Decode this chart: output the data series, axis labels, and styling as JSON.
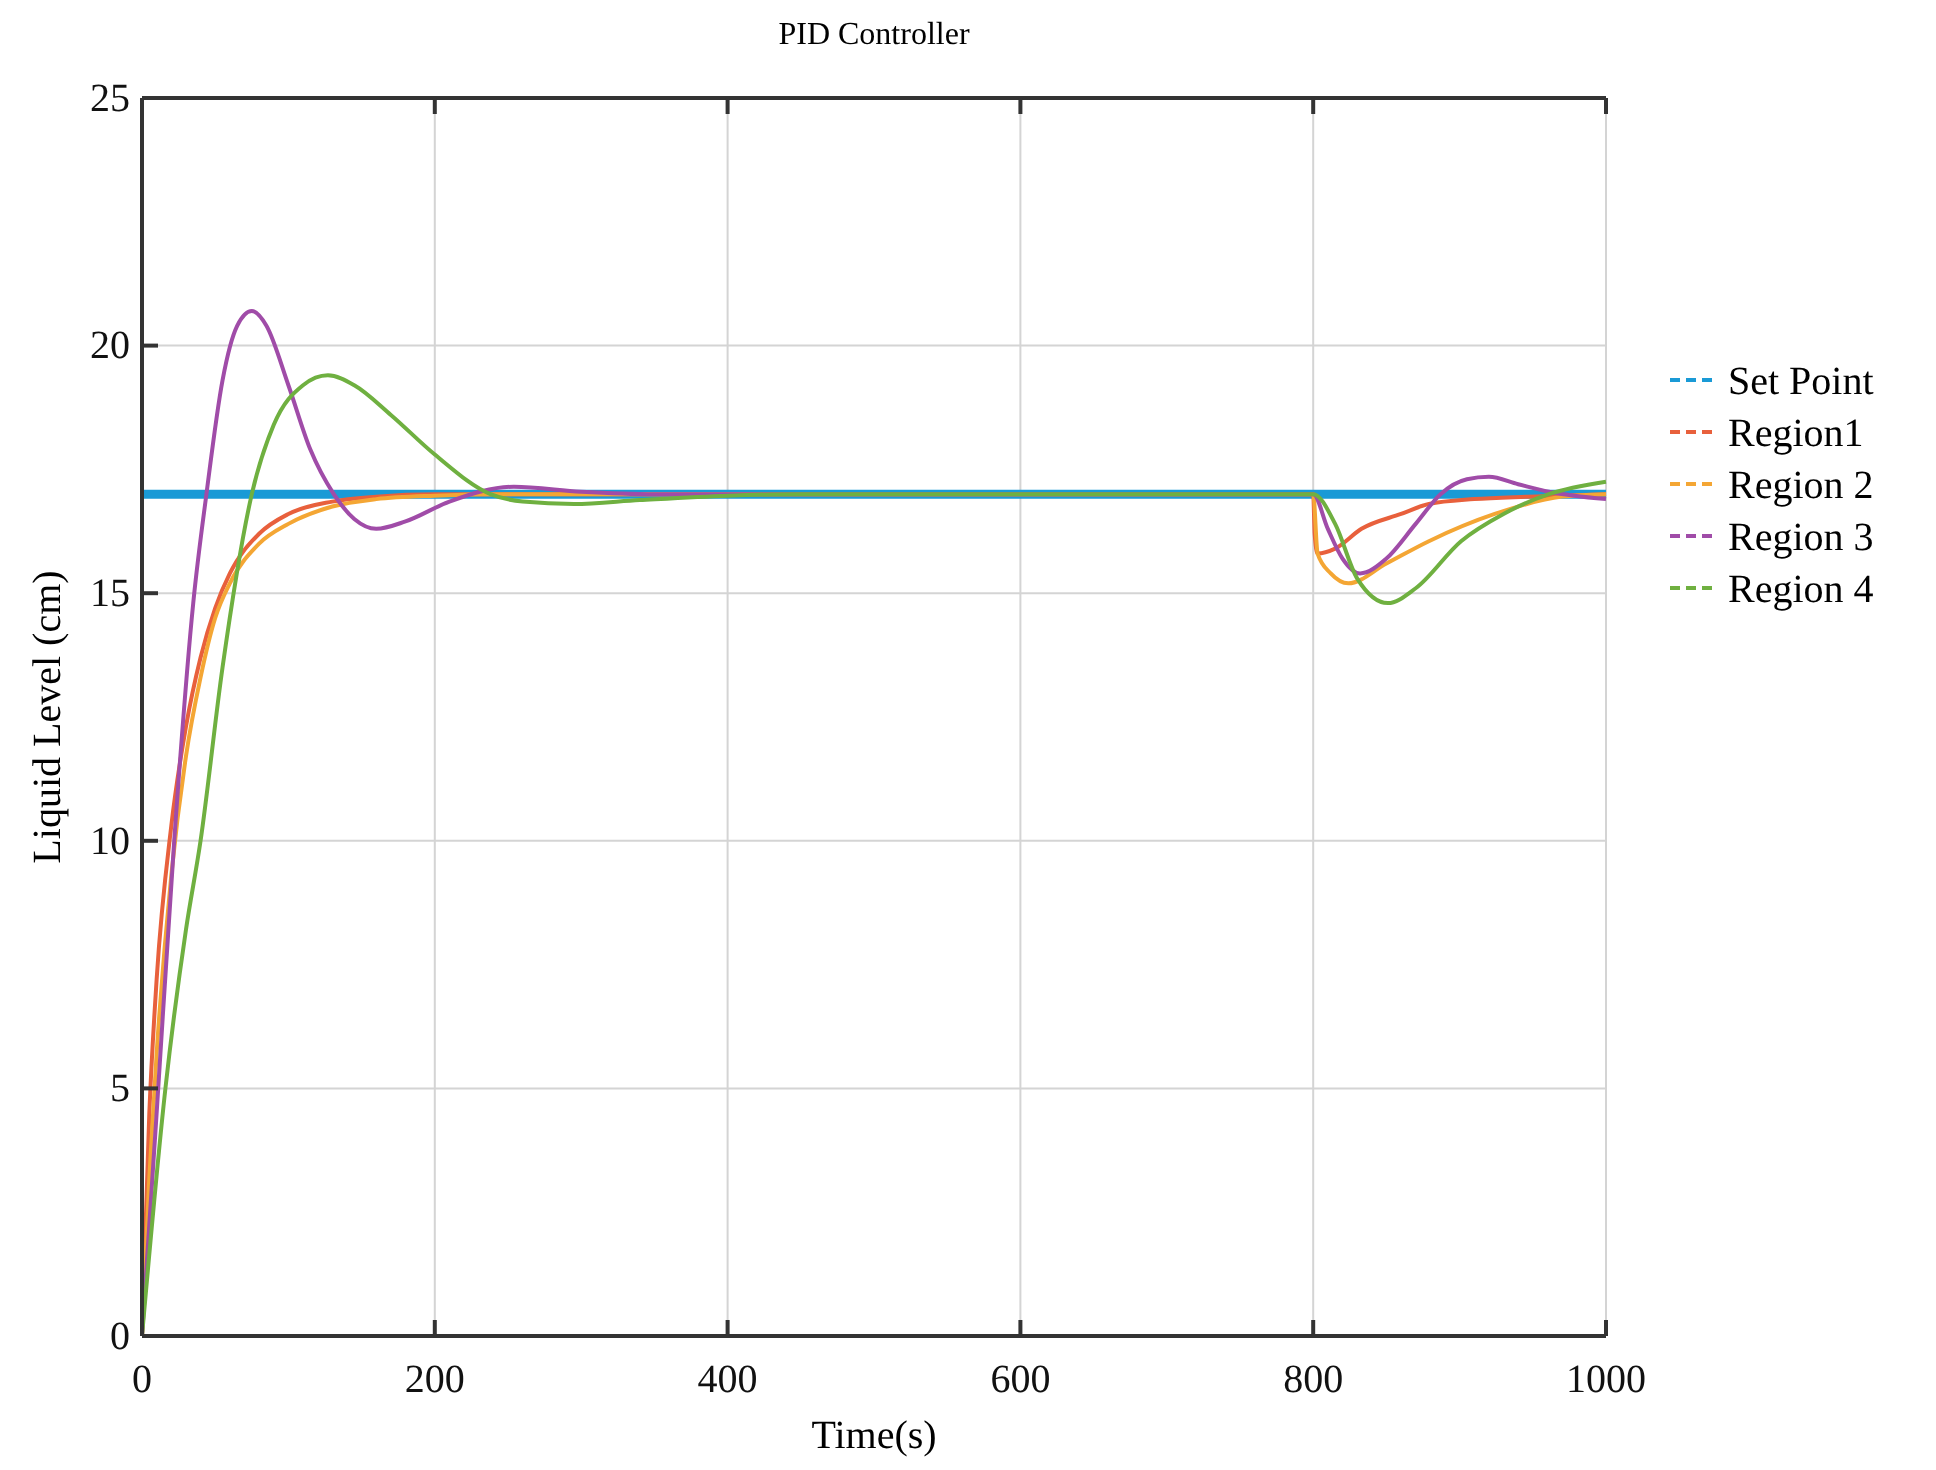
{
  "chart_data": {
    "type": "line",
    "title": "PID Controller",
    "xlabel": "Time(s)",
    "ylabel": "Liquid Level (cm)",
    "xlim": [
      0,
      1000
    ],
    "xticks": [
      0,
      200,
      400,
      600,
      800,
      1000
    ],
    "ylim": [
      0,
      25
    ],
    "yticks": [
      0,
      5,
      10,
      15,
      20,
      25
    ],
    "grid": true,
    "legend": "right",
    "line_style": "solid",
    "marker": "none",
    "series": [
      {
        "name": "Set Point",
        "color": "#1a9ad6",
        "x": [
          0,
          1000
        ],
        "values": [
          17,
          17
        ]
      },
      {
        "name": "Region1",
        "color": "#e8603c",
        "x": [
          0,
          5,
          10,
          20,
          30,
          40,
          50,
          60,
          80,
          100,
          130,
          160,
          200,
          250,
          300,
          800,
          801,
          803,
          815,
          833,
          860,
          879,
          910,
          947,
          1000
        ],
        "values": [
          0,
          4.5,
          7.2,
          10.3,
          12.3,
          13.7,
          14.7,
          15.4,
          16.2,
          16.6,
          16.85,
          16.95,
          17,
          17,
          17,
          17,
          16.2,
          15.8,
          15.9,
          16.3,
          16.6,
          16.8,
          16.9,
          16.95,
          17
        ]
      },
      {
        "name": "Region 2",
        "color": "#f4a634",
        "x": [
          0,
          5,
          10,
          20,
          30,
          40,
          50,
          60,
          80,
          100,
          130,
          160,
          200,
          250,
          300,
          800,
          803,
          812,
          824,
          850,
          879,
          924,
          970,
          1000
        ],
        "values": [
          0,
          3.2,
          5.7,
          9.3,
          11.7,
          13.3,
          14.5,
          15.2,
          16.0,
          16.4,
          16.75,
          16.9,
          16.97,
          17,
          17,
          17,
          15.8,
          15.4,
          15.2,
          15.6,
          16.05,
          16.6,
          16.95,
          17
        ]
      },
      {
        "name": "Region 3",
        "color": "#a04ca8",
        "x": [
          0,
          10,
          22,
          35,
          44,
          55,
          65,
          75,
          85,
          100,
          115,
          131,
          145,
          160,
          180,
          210,
          254,
          300,
          350,
          400,
          800,
          810,
          820,
          832,
          850,
          870,
          887,
          905,
          920,
          940,
          961,
          1000
        ],
        "values": [
          0,
          4.5,
          10,
          14.8,
          17,
          19.3,
          20.4,
          20.7,
          20.4,
          19.2,
          17.9,
          17,
          16.5,
          16.3,
          16.45,
          16.85,
          17.15,
          17.05,
          17,
          17,
          17,
          16.3,
          15.7,
          15.4,
          15.7,
          16.4,
          17,
          17.3,
          17.35,
          17.2,
          17.05,
          16.9
        ]
      },
      {
        "name": "Region 4",
        "color": "#6fb040",
        "x": [
          0,
          16,
          30,
          40,
          55,
          75,
          90,
          110,
          127,
          145,
          170,
          200,
          238,
          260,
          295,
          340,
          400,
          450,
          800,
          815,
          830,
          851,
          870,
          901,
          930,
          961,
          1000
        ],
        "values": [
          0,
          5,
          8.2,
          10,
          13.5,
          17,
          18.4,
          19.2,
          19.4,
          19.2,
          18.6,
          17.8,
          17,
          16.85,
          16.8,
          16.88,
          16.97,
          17,
          17,
          16.4,
          15.3,
          14.8,
          15.1,
          16.05,
          16.6,
          17,
          17.25
        ]
      }
    ]
  }
}
